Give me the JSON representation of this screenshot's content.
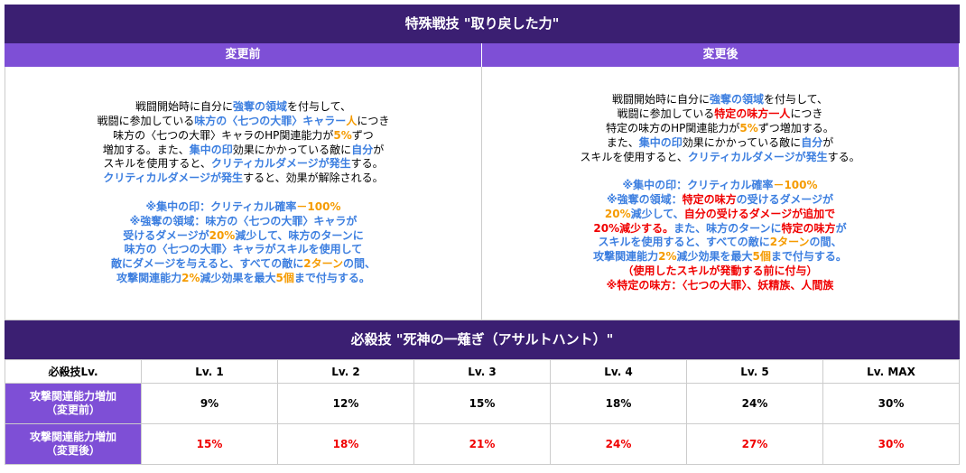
{
  "header": {
    "title": "特殊戦技 \"取り戻した力\""
  },
  "before": {
    "title": "変更前",
    "paragraphs": [
      [
        [
          "戦闘開始時に自分に",
          {
            "text": "強奪の領域",
            "color": "#3d7fe0"
          },
          "を付与して、"
        ],
        [
          "戦闘に参加している",
          {
            "text": "味方の〈七つの大罪〉キャラー",
            "color": "#3d7fe0"
          },
          {
            "text": "人",
            "color": "#f59b00"
          },
          "につき"
        ],
        [
          "味方の〈七つの大罪〉キャラのHP関連能力が",
          {
            "text": "5%",
            "color": "#f59b00"
          },
          "ずつ"
        ],
        [
          "増加する。また、",
          {
            "text": "集中の印",
            "color": "#3d7fe0"
          },
          "効果にかかっている敵に",
          {
            "text": "自分",
            "color": "#3d7fe0"
          },
          "が"
        ],
        [
          "スキルを使用すると、",
          {
            "text": "クリティカルダメージが発生",
            "color": "#3d7fe0"
          },
          "する。"
        ],
        [
          {
            "text": "クリティカルダメージが発生",
            "color": "#3d7fe0"
          },
          "すると、効果が解除される。"
        ]
      ],
      [
        [
          {
            "text": "※集中の印：クリティカル確率",
            "color": "#3d7fe0"
          },
          {
            "text": "－100%",
            "color": "#f59b00"
          }
        ],
        [
          {
            "text": "※強奪の領域：味方の〈七つの大罪〉キャラが",
            "color": "#3d7fe0"
          }
        ],
        [
          {
            "text": "受けるダメージが",
            "color": "#3d7fe0"
          },
          {
            "text": "20%",
            "color": "#f59b00"
          },
          {
            "text": "減少して、味方のターンに",
            "color": "#3d7fe0"
          }
        ],
        [
          {
            "text": "味方の〈七つの大罪〉キャラがスキルを使用して",
            "color": "#3d7fe0"
          }
        ],
        [
          {
            "text": "敵にダメージを与えると、すべての敵に",
            "color": "#3d7fe0"
          },
          {
            "text": "2ターン",
            "color": "#f59b00"
          },
          {
            "text": "の間、",
            "color": "#3d7fe0"
          }
        ],
        [
          {
            "text": "攻撃関連能力",
            "color": "#3d7fe0"
          },
          {
            "text": "2%",
            "color": "#f59b00"
          },
          {
            "text": "減少効果を最大",
            "color": "#3d7fe0"
          },
          {
            "text": "5個",
            "color": "#f59b00"
          },
          {
            "text": "まで付与する。",
            "color": "#3d7fe0"
          }
        ]
      ]
    ]
  },
  "after": {
    "title": "変更後",
    "paragraphs": [
      [
        [
          "戦闘開始時に自分に",
          {
            "text": "強奪の領域",
            "color": "#3d7fe0"
          },
          "を付与して、"
        ],
        [
          "戦闘に参加している",
          {
            "text": "特定の味方一人",
            "color": "#f00000"
          },
          "につき"
        ],
        [
          "特定の味方のHP関連能力が",
          {
            "text": "5%",
            "color": "#f59b00"
          },
          "ずつ増加する。"
        ],
        [
          "また、",
          {
            "text": "集中の印",
            "color": "#3d7fe0"
          },
          "効果にかかっている敵に",
          {
            "text": "自分",
            "color": "#3d7fe0"
          },
          "が"
        ],
        [
          "スキルを使用すると、",
          {
            "text": "クリティカルダメージが発生",
            "color": "#3d7fe0"
          },
          "する。"
        ]
      ],
      [
        [
          {
            "text": "※集中の印：クリティカル確率",
            "color": "#3d7fe0"
          },
          {
            "text": "－100%",
            "color": "#f59b00"
          }
        ],
        [
          {
            "text": "※強奪の領域：",
            "color": "#3d7fe0"
          },
          {
            "text": "特定の味方",
            "color": "#f00000"
          },
          {
            "text": "の受けるダメージが",
            "color": "#3d7fe0"
          }
        ],
        [
          {
            "text": "20%",
            "color": "#f59b00"
          },
          {
            "text": "減少して、",
            "color": "#3d7fe0"
          },
          {
            "text": "自分の受けるダメージが追加で",
            "color": "#f00000"
          }
        ],
        [
          {
            "text": "20%減少する。",
            "color": "#f00000"
          },
          {
            "text": "また、味方のターンに",
            "color": "#3d7fe0"
          },
          {
            "text": "特定の味方",
            "color": "#f00000"
          },
          {
            "text": "が",
            "color": "#3d7fe0"
          }
        ],
        [
          {
            "text": "スキルを使用すると、すべての敵に",
            "color": "#3d7fe0"
          },
          {
            "text": "2ターン",
            "color": "#f59b00"
          },
          {
            "text": "の間、",
            "color": "#3d7fe0"
          }
        ],
        [
          {
            "text": "攻撃関連能力",
            "color": "#3d7fe0"
          },
          {
            "text": "2%",
            "color": "#f59b00"
          },
          {
            "text": "減少効果を最大",
            "color": "#3d7fe0"
          },
          {
            "text": "5個",
            "color": "#f59b00"
          },
          {
            "text": "まで付与する。",
            "color": "#3d7fe0"
          }
        ],
        [
          {
            "text": "（使用したスキルが発動する前に付与）",
            "color": "#f00000"
          }
        ],
        [
          {
            "text": "※特定の味方：〈七つの大罪〉、妖精族、人間族",
            "color": "#f00000"
          }
        ]
      ]
    ]
  },
  "table": {
    "title": "必殺技 \"死神の一薙ぎ（アサルトハント）\"",
    "header": [
      "必殺技Lv.",
      "Lv. 1",
      "Lv. 2",
      "Lv. 3",
      "Lv. 4",
      "Lv. 5",
      "Lv. MAX"
    ],
    "rows": [
      {
        "label": [
          "攻撃関連能力増加",
          "（変更前）"
        ],
        "values": [
          "9%",
          "12%",
          "15%",
          "18%",
          "24%",
          "30%"
        ],
        "color": "#000000"
      },
      {
        "label": [
          "攻撃関連能力増加",
          "（変更後）"
        ],
        "values": [
          "15%",
          "18%",
          "21%",
          "24%",
          "27%",
          "30%"
        ],
        "color": "#f00000"
      }
    ]
  }
}
